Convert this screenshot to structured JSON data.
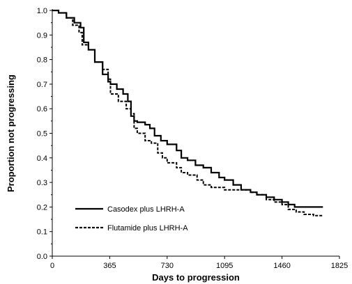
{
  "chart_data": {
    "type": "line",
    "title": "",
    "xlabel": "Days to progression",
    "ylabel": "Proportion not progressing",
    "xlim": [
      0,
      1825
    ],
    "ylim": [
      0.0,
      1.0
    ],
    "x_ticks": [
      0,
      365,
      730,
      1095,
      1460,
      1825
    ],
    "x_tick_labels": [
      "0",
      "365",
      "730",
      "1095",
      "1460",
      "1825"
    ],
    "y_ticks": [
      0.0,
      0.1,
      0.2,
      0.3,
      0.4,
      0.5,
      0.6,
      0.7,
      0.8,
      0.9,
      1.0
    ],
    "y_tick_labels": [
      "0.0",
      "0.1",
      "0.2",
      "0.3",
      "0.4",
      "0.5",
      "0.6",
      "0.7",
      "0.8",
      "0.9",
      "1.0"
    ],
    "grid": false,
    "legend": "bottom-left",
    "series": [
      {
        "name": "Casodex plus LHRH-A",
        "style": "solid",
        "color": "#000000",
        "x": [
          0,
          40,
          90,
          140,
          180,
          200,
          230,
          270,
          320,
          355,
          370,
          410,
          450,
          480,
          500,
          520,
          540,
          590,
          620,
          650,
          690,
          730,
          790,
          820,
          860,
          910,
          960,
          1010,
          1060,
          1095,
          1150,
          1200,
          1260,
          1300,
          1360,
          1410,
          1460,
          1500,
          1540,
          1580,
          1650,
          1720
        ],
        "y": [
          1.0,
          0.99,
          0.97,
          0.95,
          0.93,
          0.87,
          0.84,
          0.79,
          0.74,
          0.71,
          0.7,
          0.68,
          0.66,
          0.63,
          0.57,
          0.55,
          0.545,
          0.535,
          0.52,
          0.49,
          0.47,
          0.455,
          0.43,
          0.4,
          0.39,
          0.37,
          0.36,
          0.34,
          0.32,
          0.31,
          0.29,
          0.27,
          0.26,
          0.25,
          0.24,
          0.23,
          0.22,
          0.21,
          0.2,
          0.2,
          0.2,
          0.2
        ]
      },
      {
        "name": "Flutamide plus LHRH-A",
        "style": "dashed",
        "color": "#000000",
        "x": [
          0,
          40,
          90,
          130,
          170,
          190,
          230,
          270,
          320,
          355,
          370,
          420,
          470,
          500,
          520,
          540,
          590,
          630,
          670,
          700,
          730,
          790,
          820,
          860,
          920,
          960,
          1010,
          1095,
          1150,
          1200,
          1260,
          1300,
          1360,
          1410,
          1460,
          1500,
          1550,
          1600,
          1660,
          1720
        ],
        "y": [
          1.0,
          0.99,
          0.97,
          0.94,
          0.91,
          0.86,
          0.84,
          0.79,
          0.76,
          0.72,
          0.66,
          0.63,
          0.6,
          0.58,
          0.52,
          0.5,
          0.47,
          0.46,
          0.42,
          0.4,
          0.38,
          0.36,
          0.34,
          0.33,
          0.31,
          0.29,
          0.28,
          0.27,
          0.27,
          0.27,
          0.26,
          0.25,
          0.23,
          0.22,
          0.21,
          0.19,
          0.18,
          0.17,
          0.165,
          0.165
        ]
      }
    ]
  }
}
